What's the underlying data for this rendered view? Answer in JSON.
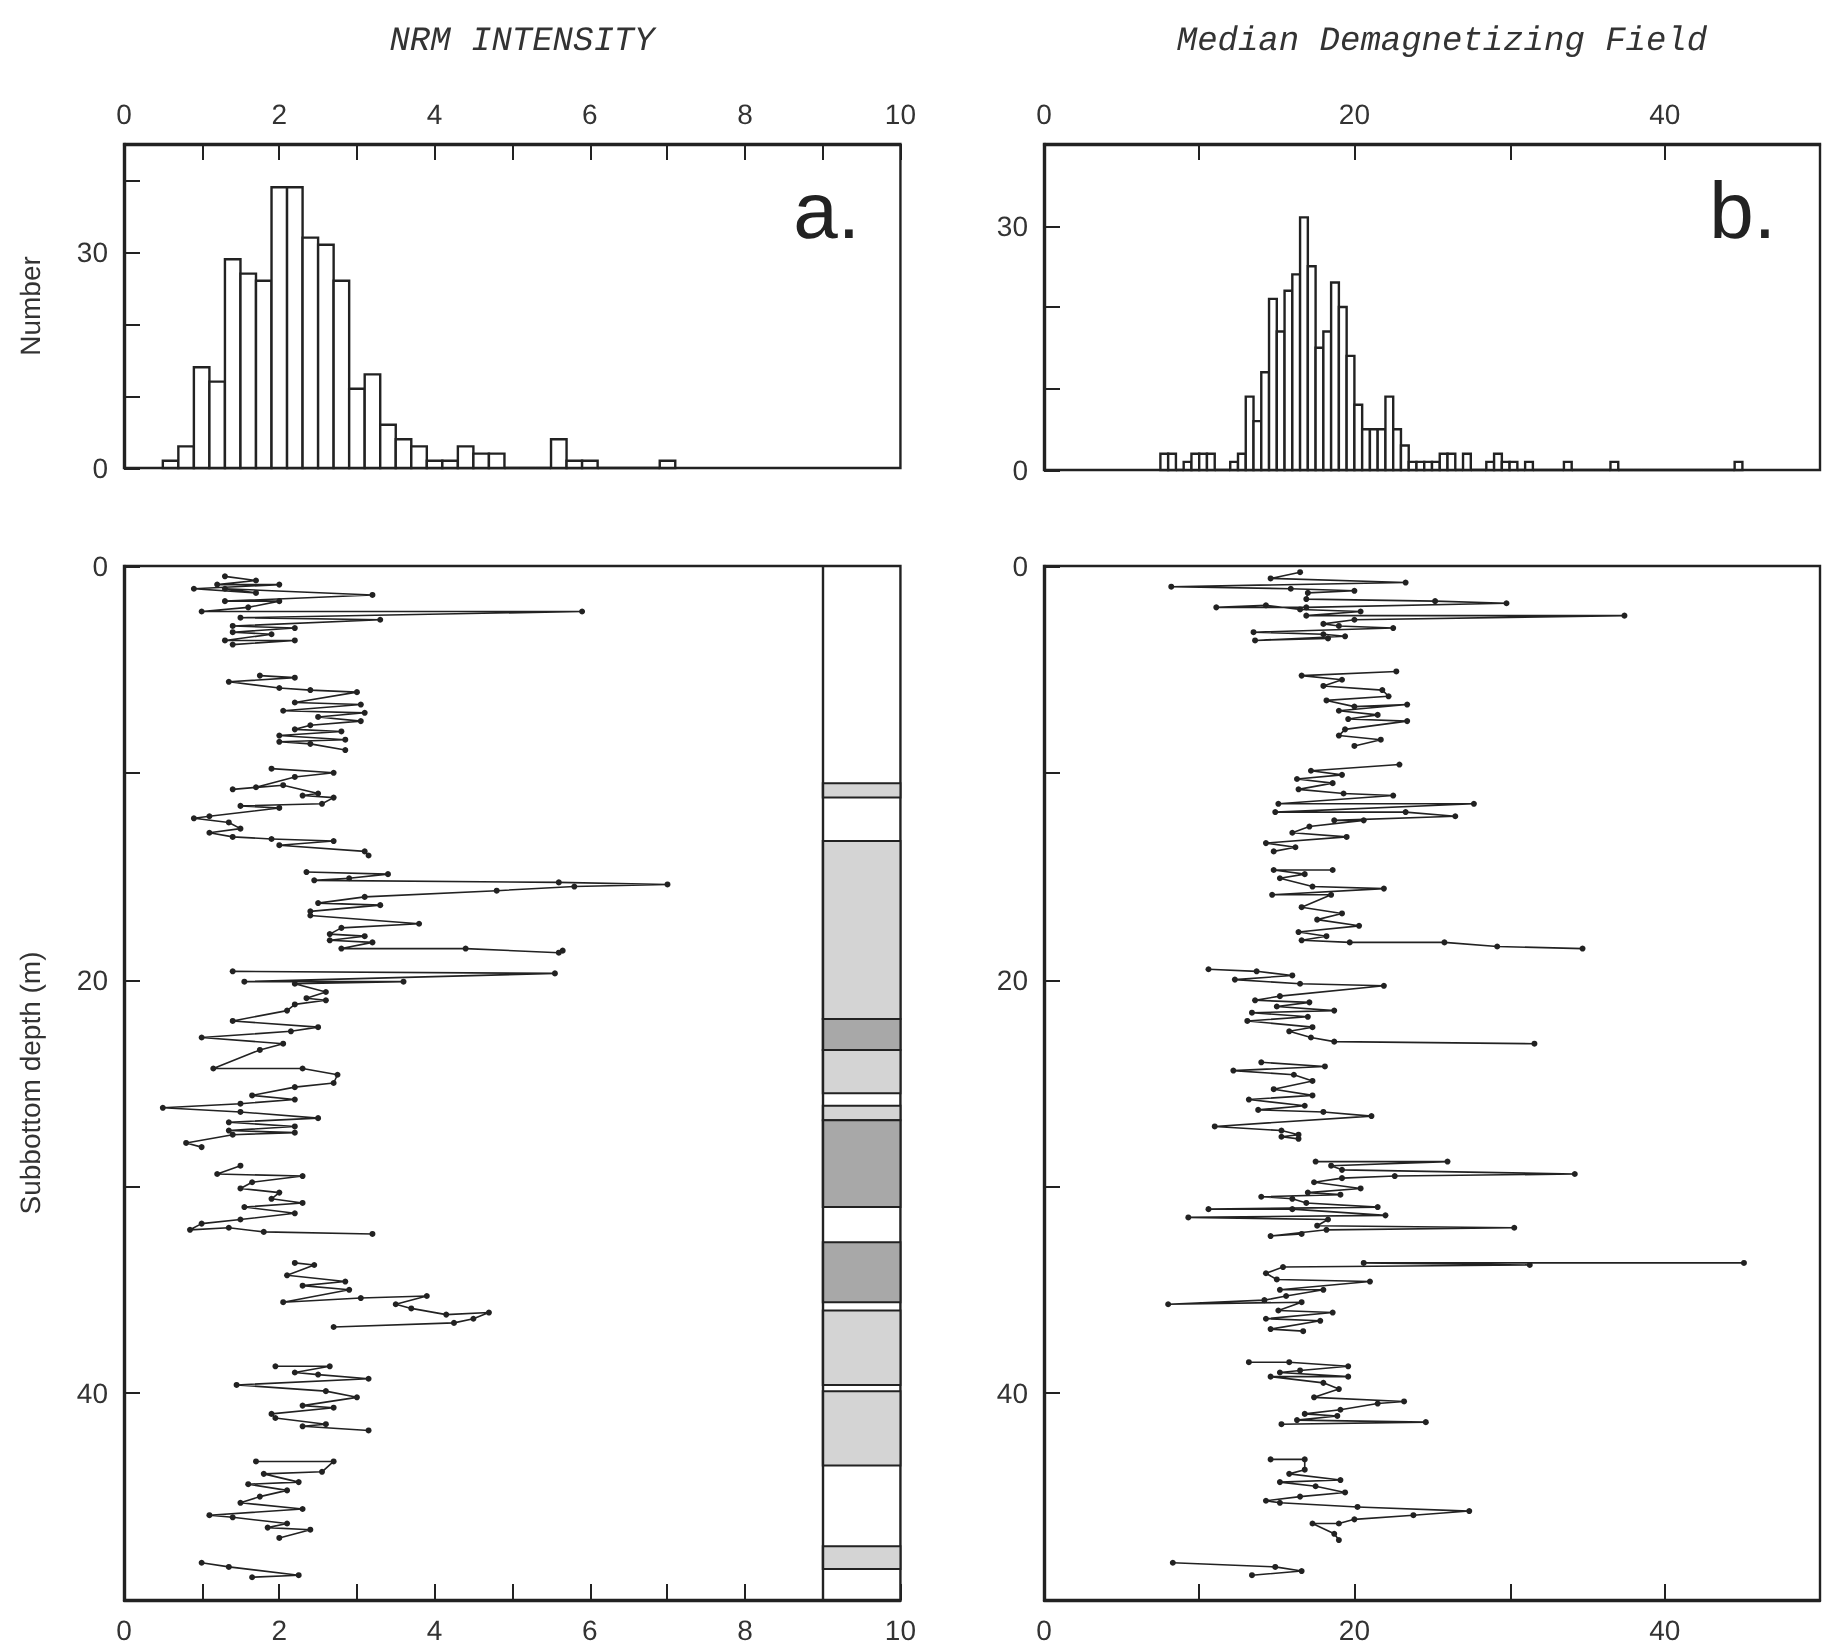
{
  "chart_data": [
    {
      "type": "histogram",
      "title": "NRM INTENSITY",
      "ylabel": "Number",
      "annotations": [
        "a."
      ],
      "color": "#222222",
      "bins": [
        0.5,
        0.7,
        0.9,
        1.1,
        1.3,
        1.5,
        1.7,
        1.9,
        2.1,
        2.3,
        2.5,
        2.7,
        2.9,
        3.1,
        3.3,
        3.5,
        3.7,
        3.9,
        4.1,
        4.3,
        4.5,
        4.7,
        4.9,
        5.1,
        5.3,
        5.5,
        5.7,
        5.9,
        6.1,
        6.3,
        6.5,
        6.7,
        6.9,
        7.1
      ],
      "values": [
        1,
        3,
        14,
        12,
        29,
        27,
        26,
        39,
        39,
        32,
        31,
        26,
        11,
        13,
        6,
        4,
        3,
        1,
        1,
        3,
        2,
        2,
        0,
        0,
        0,
        4,
        1,
        1,
        0,
        0,
        0,
        0,
        1
      ],
      "xlim": [
        0,
        10
      ],
      "xticks": [
        0,
        {
          "value": 1,
          "label": null
        },
        2,
        {
          "value": 3,
          "label": null
        },
        4,
        {
          "value": 5,
          "label": null
        },
        6,
        {
          "value": 7,
          "label": null
        },
        8,
        {
          "value": 9,
          "label": null
        },
        10
      ],
      "ylim": [
        0,
        45
      ],
      "yticks": [
        0,
        {
          "value": 10,
          "label": null
        },
        {
          "value": 20,
          "label": null
        },
        30,
        {
          "value": 40,
          "label": null
        }
      ]
    },
    {
      "type": "histogram",
      "title": "Median Demagnetizing Field",
      "annotations": [
        "b."
      ],
      "color": "#222222",
      "bins": [
        7.5,
        8,
        8.5,
        9,
        9.5,
        10,
        10.5,
        11,
        11.5,
        12,
        12.5,
        13,
        13.5,
        14,
        14.5,
        15,
        15.5,
        16,
        16.5,
        17,
        17.5,
        18,
        18.5,
        19,
        19.5,
        20,
        20.5,
        21,
        21.5,
        22,
        22.5,
        23,
        23.5,
        24,
        24.5,
        25,
        25.5,
        26,
        26.5,
        27,
        27.5,
        28,
        28.5,
        29,
        29.5,
        30,
        30.5,
        31,
        31.5,
        32,
        32.5,
        33,
        33.5,
        34,
        34.5,
        35,
        35.5,
        36,
        36.5,
        37,
        37.5,
        38,
        38.5,
        39,
        39.5,
        40,
        40.5,
        41,
        41.5,
        42,
        42.5,
        43,
        43.5,
        44,
        44.5,
        45
      ],
      "values": [
        2,
        2,
        0,
        1,
        2,
        2,
        2,
        0,
        0,
        1,
        2,
        9,
        6,
        12,
        21,
        17,
        22,
        24,
        31,
        25,
        15,
        17,
        23,
        20,
        14,
        8,
        5,
        5,
        5,
        9,
        5,
        3,
        1,
        1,
        1,
        1,
        2,
        2,
        0,
        2,
        0,
        0,
        1,
        2,
        1,
        1,
        0,
        1,
        0,
        0,
        0,
        0,
        1,
        0,
        0,
        0,
        0,
        0,
        1,
        0,
        0,
        0,
        0,
        0,
        0,
        0,
        0,
        0,
        0,
        0,
        0,
        0,
        0,
        0,
        1
      ],
      "xlim": [
        0,
        50
      ],
      "xticks": [
        0,
        {
          "value": 10,
          "label": null
        },
        20,
        {
          "value": 30,
          "label": null
        },
        40
      ],
      "ylim": [
        0,
        40
      ],
      "yticks": [
        0,
        {
          "value": 10,
          "label": null
        },
        {
          "value": 20,
          "label": null
        },
        30
      ]
    },
    {
      "type": "line",
      "ylabel": "Subbottom depth (m)",
      "color": "#222222",
      "marker": "circle",
      "x": [
        1.3,
        1.7,
        1.2,
        2.0,
        0.9,
        1.7,
        1.3,
        3.2,
        1.3,
        2.0,
        1.6,
        1.0,
        5.9,
        1.5,
        3.3,
        1.4,
        2.2,
        1.4,
        1.9,
        1.3,
        2.2,
        1.4,
        null,
        1.75,
        2.2,
        1.35,
        2.0,
        2.4,
        3.0,
        2.2,
        3.05,
        2.05,
        3.1,
        2.5,
        3.05,
        2.4,
        2.2,
        2.8,
        2.0,
        2.85,
        2.0,
        2.4,
        2.85,
        null,
        1.9,
        2.7,
        2.2,
        1.7,
        1.4,
        2.05,
        2.5,
        2.3,
        2.7,
        2.55,
        1.5,
        2.0,
        1.1,
        0.9,
        1.35,
        1.5,
        1.1,
        1.4,
        1.9,
        2.7,
        2.0,
        3.1,
        3.15,
        null,
        2.35,
        3.4,
        2.9,
        2.45,
        5.6,
        7.0,
        5.8,
        4.8,
        3.1,
        2.5,
        3.3,
        2.4,
        2.4,
        3.8,
        2.8,
        2.65,
        3.1,
        2.65,
        3.2,
        2.8,
        4.4,
        5.6,
        5.65,
        null,
        1.4,
        5.55,
        1.55,
        3.6,
        2.2,
        2.6,
        2.35,
        2.6,
        2.2,
        2.1,
        1.4,
        2.5,
        2.15,
        1.0,
        2.05,
        1.75,
        1.15,
        2.3,
        2.75,
        2.7,
        2.2,
        1.65,
        2.2,
        1.5,
        0.5,
        1.5,
        2.5,
        1.35,
        2.2,
        1.35,
        2.2,
        1.4,
        0.8,
        1.0,
        null,
        1.5,
        1.2,
        2.3,
        1.65,
        1.5,
        2.0,
        1.9,
        2.3,
        1.55,
        2.2,
        1.5,
        1.0,
        0.85,
        1.35,
        1.8,
        3.2,
        null,
        2.2,
        2.45,
        2.1,
        2.85,
        2.3,
        2.9,
        2.05,
        3.05,
        3.9,
        3.5,
        3.7,
        4.15,
        4.7,
        4.5,
        4.25,
        2.7,
        null,
        1.95,
        2.65,
        2.2,
        2.5,
        3.15,
        1.45,
        2.6,
        3.0,
        2.3,
        2.7,
        1.9,
        1.95,
        2.6,
        2.3,
        3.15,
        null,
        1.7,
        2.7,
        2.55,
        1.8,
        2.25,
        1.6,
        2.1,
        1.75,
        1.5,
        2.3,
        1.1,
        1.4,
        2.1,
        1.85,
        2.4,
        2.0,
        null,
        1.0,
        1.35,
        2.25,
        1.65
      ],
      "values": [
        0.5,
        0.7,
        0.9,
        0.9,
        1.1,
        1.3,
        1.1,
        1.4,
        1.7,
        1.7,
        2.0,
        2.2,
        2.2,
        2.5,
        2.6,
        2.9,
        3.0,
        3.2,
        3.3,
        3.6,
        3.6,
        3.8,
        null,
        5.3,
        5.4,
        5.6,
        5.9,
        6.0,
        6.1,
        6.6,
        6.7,
        7.0,
        7.1,
        7.3,
        7.5,
        7.7,
        7.9,
        8.0,
        8.2,
        8.4,
        8.5,
        8.6,
        8.9,
        null,
        9.8,
        10.0,
        10.2,
        10.7,
        10.8,
        10.6,
        11.0,
        11.1,
        11.2,
        11.5,
        11.6,
        11.7,
        12.1,
        12.2,
        12.4,
        12.7,
        12.9,
        13.1,
        13.2,
        13.3,
        13.5,
        13.8,
        14.0,
        null,
        14.8,
        14.9,
        15.1,
        15.2,
        15.3,
        15.4,
        15.5,
        15.7,
        16.0,
        16.3,
        16.4,
        16.7,
        16.9,
        17.3,
        17.5,
        17.8,
        17.9,
        18.1,
        18.2,
        18.5,
        18.5,
        18.7,
        18.6,
        null,
        19.6,
        19.7,
        20.1,
        20.1,
        20.2,
        20.6,
        20.9,
        21.0,
        21.2,
        21.5,
        22.0,
        22.3,
        22.5,
        22.8,
        23.1,
        23.4,
        24.3,
        24.3,
        24.6,
        25.0,
        25.2,
        25.6,
        25.8,
        26.0,
        26.2,
        26.4,
        26.7,
        26.9,
        27.1,
        27.3,
        27.4,
        27.5,
        27.9,
        28.1,
        null,
        29.0,
        29.4,
        29.5,
        29.8,
        30.1,
        30.3,
        30.6,
        30.8,
        31.0,
        31.3,
        31.6,
        31.8,
        32.1,
        32.0,
        32.2,
        32.3,
        null,
        33.7,
        33.8,
        34.3,
        34.6,
        34.8,
        35.0,
        35.6,
        35.4,
        35.3,
        35.7,
        35.9,
        36.2,
        36.1,
        36.4,
        36.6,
        36.8,
        null,
        38.7,
        38.7,
        39.0,
        39.1,
        39.3,
        39.6,
        39.9,
        40.2,
        40.6,
        40.7,
        41.0,
        41.2,
        41.5,
        41.6,
        41.8,
        null,
        43.3,
        43.3,
        43.8,
        43.9,
        44.3,
        44.4,
        44.7,
        45.0,
        45.3,
        45.6,
        45.9,
        46.0,
        46.3,
        46.5,
        46.6,
        47.0,
        null,
        48.2,
        48.4,
        48.8,
        48.9
      ],
      "xlim": [
        0,
        10
      ],
      "xticks": [
        0,
        {
          "value": 1,
          "label": null
        },
        2,
        {
          "value": 3,
          "label": null
        },
        4,
        {
          "value": 5,
          "label": null
        },
        6,
        {
          "value": 7,
          "label": null
        },
        8,
        {
          "value": 9,
          "label": null
        },
        10
      ],
      "ylim": [
        50,
        0
      ],
      "yticks": [
        0,
        {
          "value": 10,
          "label": null
        },
        20,
        {
          "value": 30,
          "label": null
        },
        40
      ],
      "ref_lines": [
        {
          "axis": "x",
          "value": 9
        }
      ],
      "bands": [
        {
          "axis": "y",
          "from": 10.5,
          "to": 11.2,
          "color": "#d4d4d4"
        },
        {
          "axis": "y",
          "from": 13.3,
          "to": 21.9,
          "color": "#d4d4d4"
        },
        {
          "axis": "y",
          "from": 21.9,
          "to": 23.4,
          "color": "#a8a8a8"
        },
        {
          "axis": "y",
          "from": 23.4,
          "to": 25.5,
          "color": "#d4d4d4"
        },
        {
          "axis": "y",
          "from": 26.1,
          "to": 26.8,
          "color": "#d4d4d4"
        },
        {
          "axis": "y",
          "from": 26.8,
          "to": 31.0,
          "color": "#a8a8a8"
        },
        {
          "axis": "y",
          "from": 32.7,
          "to": 35.6,
          "color": "#a8a8a8"
        },
        {
          "axis": "y",
          "from": 36.0,
          "to": 39.6,
          "color": "#d4d4d4"
        },
        {
          "axis": "y",
          "from": 39.9,
          "to": 43.5,
          "color": "#d4d4d4"
        },
        {
          "axis": "y",
          "from": 47.4,
          "to": 48.5,
          "color": "#d4d4d4"
        }
      ]
    },
    {
      "type": "line",
      "color": "#222222",
      "marker": "circle",
      "x": [
        16.5,
        14.6,
        23.3,
        8.2,
        15.9,
        20.0,
        17.0,
        16.9,
        25.2,
        29.8,
        16.9,
        11.1,
        14.3,
        16.5,
        20.4,
        16.9,
        37.4,
        20.0,
        18.0,
        19.0,
        22.5,
        13.5,
        18.0,
        19.4,
        13.6,
        18.3,
        null,
        22.7,
        16.6,
        19.2,
        18.0,
        21.8,
        22.2,
        18.2,
        20.0,
        23.4,
        19.0,
        21.5,
        19.6,
        23.4,
        19.4,
        19.0,
        21.7,
        20.0,
        null,
        22.9,
        17.2,
        19.2,
        16.3,
        18.6,
        16.4,
        19.3,
        22.5,
        15.1,
        27.7,
        14.9,
        23.3,
        26.5,
        18.7,
        20.6,
        17.1,
        16.0,
        19.5,
        14.3,
        16.2,
        14.8,
        null,
        18.6,
        14.8,
        16.8,
        15.2,
        17.3,
        21.9,
        14.7,
        18.5,
        16.6,
        19.2,
        17.6,
        20.3,
        16.4,
        18.2,
        16.6,
        19.7,
        25.8,
        29.2,
        34.7,
        null,
        10.6,
        13.7,
        16.0,
        12.3,
        16.5,
        21.9,
        15.2,
        13.6,
        17.1,
        15.0,
        18.7,
        13.4,
        17.0,
        13.1,
        17.3,
        15.8,
        17.2,
        18.7,
        31.6,
        null,
        14.0,
        18.1,
        12.2,
        16.1,
        17.3,
        14.8,
        17.3,
        13.2,
        16.8,
        13.8,
        18.0,
        21.1,
        11.0,
        15.3,
        16.4,
        15.3,
        16.4,
        null,
        17.5,
        26.0,
        18.5,
        19.2,
        34.2,
        22.6,
        19.2,
        17.4,
        20.4,
        17.0,
        19.1,
        14.0,
        16.0,
        16.9,
        21.5,
        10.6,
        16.0,
        22.0,
        9.3,
        18.3,
        17.6,
        30.3,
        18.2,
        14.6,
        16.6,
        null,
        45.1,
        20.6,
        31.3,
        15.4,
        14.3,
        15.0,
        21.0,
        15.2,
        18.0,
        15.6,
        14.2,
        8.0,
        16.6,
        15.1,
        18.6,
        14.3,
        17.8,
        14.6,
        16.7,
        null,
        13.2,
        15.8,
        19.6,
        16.5,
        15.2,
        19.6,
        14.6,
        18.0,
        19.0,
        17.4,
        23.2,
        21.5,
        19.1,
        16.8,
        18.9,
        16.3,
        24.6,
        15.3,
        null,
        14.6,
        16.8,
        16.8,
        15.8,
        19.1,
        15.2,
        17.5,
        19.4,
        16.5,
        14.3,
        15.2,
        20.2,
        27.4,
        23.8,
        20.0,
        19.0,
        17.3,
        18.7,
        19.0,
        null,
        8.3,
        14.9,
        16.6,
        13.4
      ],
      "values": [
        0.3,
        0.6,
        0.8,
        1.0,
        1.1,
        1.2,
        1.3,
        1.6,
        1.7,
        1.8,
        2.0,
        2.0,
        1.9,
        2.1,
        2.2,
        2.4,
        2.4,
        2.6,
        2.8,
        2.9,
        3.0,
        3.2,
        3.3,
        3.4,
        3.6,
        3.5,
        null,
        5.1,
        5.3,
        5.5,
        5.8,
        6.0,
        6.3,
        6.5,
        6.8,
        6.7,
        7.0,
        7.2,
        7.4,
        7.5,
        7.9,
        8.2,
        8.4,
        8.7,
        null,
        9.6,
        9.9,
        10.1,
        10.3,
        10.5,
        10.8,
        11.0,
        11.1,
        11.5,
        11.5,
        11.9,
        11.9,
        12.1,
        12.3,
        12.3,
        12.6,
        12.9,
        13.1,
        13.4,
        13.6,
        13.8,
        null,
        14.7,
        14.7,
        14.9,
        15.1,
        15.5,
        15.6,
        15.9,
        15.9,
        16.5,
        16.8,
        17.1,
        17.4,
        17.7,
        17.9,
        18.1,
        18.2,
        18.2,
        18.4,
        18.5,
        null,
        19.5,
        19.6,
        19.8,
        20.0,
        20.2,
        20.3,
        20.8,
        21.0,
        21.1,
        21.3,
        21.5,
        21.6,
        21.8,
        22.0,
        22.3,
        22.5,
        22.8,
        23.0,
        23.1,
        null,
        24.0,
        24.2,
        24.4,
        24.6,
        24.9,
        25.3,
        25.6,
        25.8,
        26.1,
        26.3,
        26.4,
        26.6,
        27.1,
        27.3,
        27.5,
        27.6,
        27.7,
        null,
        28.8,
        28.8,
        29.0,
        29.2,
        29.4,
        29.5,
        29.6,
        29.8,
        30.1,
        30.3,
        30.4,
        30.5,
        30.6,
        30.8,
        31.0,
        31.1,
        31.1,
        31.4,
        31.5,
        31.6,
        31.9,
        32.0,
        32.1,
        32.4,
        32.3,
        null,
        33.7,
        33.7,
        33.8,
        33.9,
        34.2,
        34.5,
        34.6,
        35.0,
        35.0,
        35.3,
        35.5,
        35.7,
        35.6,
        36.0,
        36.1,
        36.4,
        36.5,
        36.9,
        37.0,
        null,
        38.5,
        38.5,
        38.7,
        38.9,
        39.0,
        39.2,
        39.2,
        39.5,
        39.8,
        40.2,
        40.4,
        40.5,
        40.8,
        41.0,
        41.1,
        41.3,
        41.4,
        41.5,
        null,
        43.2,
        43.2,
        43.7,
        43.9,
        44.2,
        44.3,
        44.5,
        44.8,
        45.0,
        45.2,
        45.3,
        45.5,
        45.7,
        45.9,
        46.1,
        46.3,
        46.3,
        46.8,
        47.1,
        null,
        48.2,
        48.4,
        48.6,
        48.8
      ],
      "xlim": [
        0,
        50
      ],
      "xticks": [
        0,
        {
          "value": 10,
          "label": null
        },
        20,
        {
          "value": 30,
          "label": null
        },
        40
      ],
      "ylim": [
        50,
        0
      ],
      "yticks": [
        0,
        {
          "value": 10,
          "label": null
        },
        20,
        {
          "value": 30,
          "label": null
        },
        40
      ]
    }
  ]
}
